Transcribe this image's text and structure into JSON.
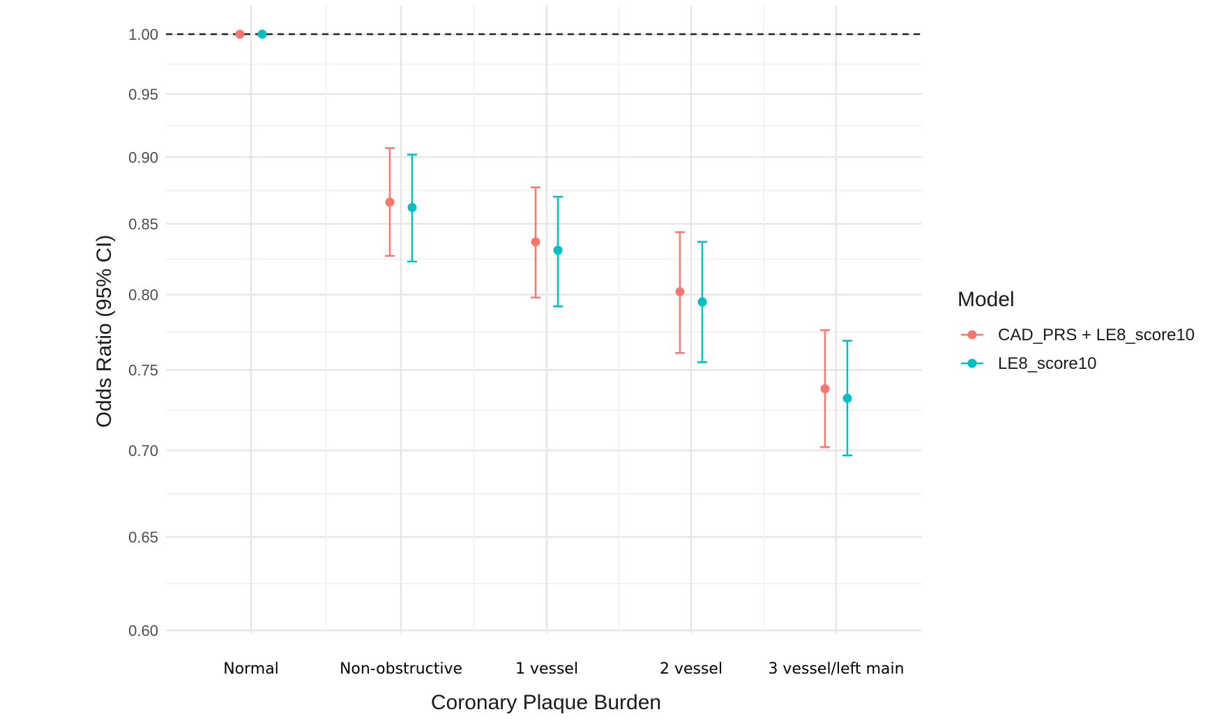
{
  "chart_data": {
    "type": "scatter",
    "subtype": "point-errorbar",
    "title": "",
    "xlabel": "Coronary Plaque Burden",
    "ylabel": "Odds Ratio (95% CI)",
    "y_scale": "log",
    "ylim": [
      0.6,
      1.0
    ],
    "y_ticks": [
      "0.60",
      "0.65",
      "0.70",
      "0.75",
      "0.80",
      "0.85",
      "0.90",
      "0.95",
      "1.00"
    ],
    "y_tick_values": [
      0.6,
      0.65,
      0.7,
      0.75,
      0.8,
      0.85,
      0.9,
      0.95,
      1.0
    ],
    "reference_line": 1.0,
    "grid": true,
    "categories": [
      "Normal",
      "Non-obstructive",
      "1 vessel",
      "2 vessel",
      "3 vessel/left main"
    ],
    "legend": {
      "title": "Model",
      "position": "right"
    },
    "series": [
      {
        "name": "CAD_PRS + LE8_score10",
        "color": "#F8766D",
        "values": [
          1.0,
          0.866,
          0.837,
          0.802,
          0.738
        ],
        "lower": [
          null,
          0.827,
          0.798,
          0.761,
          0.702
        ],
        "upper": [
          null,
          0.907,
          0.877,
          0.844,
          0.776
        ]
      },
      {
        "name": "LE8_score10",
        "color": "#00BFC4",
        "values": [
          1.0,
          0.862,
          0.831,
          0.795,
          0.732
        ],
        "lower": [
          null,
          0.823,
          0.792,
          0.755,
          0.697
        ],
        "upper": [
          null,
          0.902,
          0.87,
          0.837,
          0.769
        ]
      }
    ]
  }
}
